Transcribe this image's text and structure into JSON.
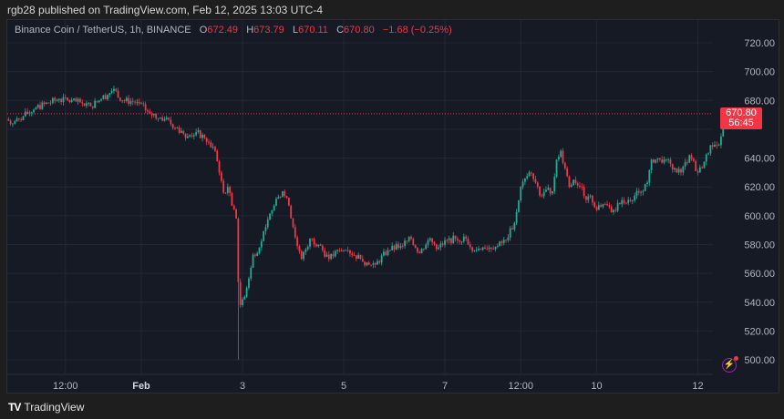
{
  "header": {
    "published": "rgb28 published on TradingView.com, Feb 12, 2025 13:03 UTC-4"
  },
  "legend": {
    "symbol": "Binance Coin / TetherUS, 1h, BINANCE",
    "o_label": "O",
    "open": "672.49",
    "h_label": "H",
    "high": "673.79",
    "l_label": "L",
    "low": "670.11",
    "c_label": "C",
    "close": "670.80",
    "change": "−1.68 (−0.25%)"
  },
  "price_tag": {
    "price": "670.80",
    "countdown": "56:45"
  },
  "footer": {
    "brand": "TradingView",
    "logo_text": "TV"
  },
  "icons": {
    "alert": "lightning-icon"
  },
  "colors": {
    "up": "#22ab94",
    "down": "#f23645",
    "background": "#161a25",
    "grid": "#232734",
    "alert": "#9c27b0"
  },
  "chart_data": {
    "type": "candlestick",
    "timeframe": "1h",
    "year": 2025,
    "y_ticks": [
      "720.00",
      "700.00",
      "680.00",
      "660.00",
      "640.00",
      "620.00",
      "600.00",
      "580.00",
      "560.00",
      "540.00",
      "520.00",
      "500.00"
    ],
    "ylim": [
      500,
      720
    ],
    "x_ticks": [
      {
        "label": "12:00",
        "time": "01-30 12:00"
      },
      {
        "label": "Feb",
        "time": "02-01 00:00",
        "bold": true
      },
      {
        "label": "3",
        "time": "02-03 00:00"
      },
      {
        "label": "5",
        "time": "02-05 00:00"
      },
      {
        "label": "7",
        "time": "02-07 00:00"
      },
      {
        "label": "12:00",
        "time": "02-08 12:00"
      },
      {
        "label": "10",
        "time": "02-10 00:00"
      },
      {
        "label": "12",
        "time": "02-12 00:00"
      }
    ],
    "grid": true,
    "last_price": 670.8,
    "extreme_wicks": [
      {
        "time": "02-02 22:00",
        "low": 500
      }
    ],
    "close_path": [
      [
        "01-29 08:00",
        667
      ],
      [
        "01-29 11:00",
        664
      ],
      [
        "01-29 16:00",
        669
      ],
      [
        "01-29 22:00",
        675
      ],
      [
        "01-30 09:00",
        681
      ],
      [
        "01-30 20:00",
        678
      ],
      [
        "01-31 00:00",
        676
      ],
      [
        "01-31 05:00",
        681
      ],
      [
        "01-31 11:00",
        688
      ],
      [
        "01-31 15:00",
        680
      ],
      [
        "01-31 22:00",
        679
      ],
      [
        "02-01 04:00",
        671
      ],
      [
        "02-01 11:00",
        667
      ],
      [
        "02-01 17:00",
        661
      ],
      [
        "02-01 22:00",
        655
      ],
      [
        "02-02 02:00",
        658
      ],
      [
        "02-02 06:00",
        654
      ],
      [
        "02-02 11:00",
        645
      ],
      [
        "02-02 13:00",
        630
      ],
      [
        "02-02 15:00",
        616
      ],
      [
        "02-02 17:00",
        620
      ],
      [
        "02-02 19:00",
        607
      ],
      [
        "02-02 21:00",
        598
      ],
      [
        "02-02 22:00",
        554
      ],
      [
        "02-02 23:00",
        538
      ],
      [
        "02-03 00:00",
        542
      ],
      [
        "02-03 02:00",
        550
      ],
      [
        "02-03 05:00",
        573
      ],
      [
        "02-03 08:00",
        578
      ],
      [
        "02-03 11:00",
        592
      ],
      [
        "02-03 15:00",
        607
      ],
      [
        "02-03 19:00",
        617
      ],
      [
        "02-03 22:00",
        607
      ],
      [
        "02-04 02:00",
        579
      ],
      [
        "02-04 04:00",
        570
      ],
      [
        "02-04 08:00",
        584
      ],
      [
        "02-04 12:00",
        580
      ],
      [
        "02-04 17:00",
        570
      ],
      [
        "02-04 22:00",
        576
      ],
      [
        "02-05 02:00",
        576
      ],
      [
        "02-05 08:00",
        570
      ],
      [
        "02-05 12:00",
        566
      ],
      [
        "02-05 15:00",
        566
      ],
      [
        "02-05 21:00",
        576
      ],
      [
        "02-06 03:00",
        579
      ],
      [
        "02-06 08:00",
        584
      ],
      [
        "02-06 12:00",
        574
      ],
      [
        "02-06 16:00",
        583
      ],
      [
        "02-06 21:00",
        578
      ],
      [
        "02-07 01:00",
        583
      ],
      [
        "02-07 05:00",
        584
      ],
      [
        "02-07 10:00",
        584
      ],
      [
        "02-07 14:00",
        576
      ],
      [
        "02-07 18:00",
        578
      ],
      [
        "02-08 01:00",
        579
      ],
      [
        "02-08 05:00",
        583
      ],
      [
        "02-08 09:00",
        595
      ],
      [
        "02-08 12:00",
        620
      ],
      [
        "02-08 16:00",
        630
      ],
      [
        "02-08 19:00",
        623
      ],
      [
        "02-08 21:00",
        614
      ],
      [
        "02-09 00:00",
        618
      ],
      [
        "02-09 03:00",
        617
      ],
      [
        "02-09 05:00",
        639
      ],
      [
        "02-09 07:00",
        645
      ],
      [
        "02-09 09:00",
        633
      ],
      [
        "02-09 11:00",
        620
      ],
      [
        "02-09 13:00",
        625
      ],
      [
        "02-09 17:00",
        620
      ],
      [
        "02-09 19:00",
        611
      ],
      [
        "02-09 21:00",
        614
      ],
      [
        "02-10 00:00",
        604
      ],
      [
        "02-10 03:00",
        608
      ],
      [
        "02-10 08:00",
        604
      ],
      [
        "02-10 11:00",
        608
      ],
      [
        "02-10 15:00",
        611
      ],
      [
        "02-10 20:00",
        616
      ],
      [
        "02-11 00:00",
        623
      ],
      [
        "02-11 02:00",
        639
      ],
      [
        "02-11 06:00",
        639
      ],
      [
        "02-11 11:00",
        636
      ],
      [
        "02-11 13:00",
        633
      ],
      [
        "02-11 16:00",
        630
      ],
      [
        "02-11 20:00",
        642
      ],
      [
        "02-12 00:00",
        630
      ],
      [
        "02-12 02:00",
        633
      ],
      [
        "02-12 06:00",
        649
      ],
      [
        "02-12 10:00",
        649
      ],
      [
        "02-12 11:00",
        655
      ],
      [
        "02-12 12:00",
        672.49
      ],
      [
        "02-12 13:00",
        670.8
      ]
    ]
  }
}
